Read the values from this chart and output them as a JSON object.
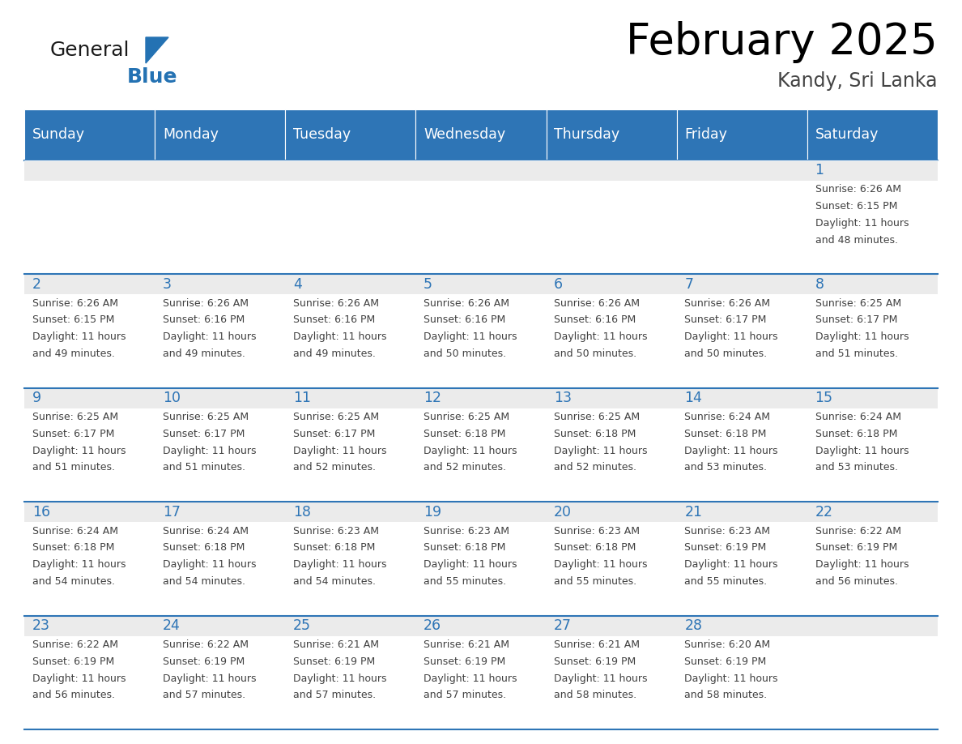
{
  "title": "February 2025",
  "subtitle": "Kandy, Sri Lanka",
  "days_of_week": [
    "Sunday",
    "Monday",
    "Tuesday",
    "Wednesday",
    "Thursday",
    "Friday",
    "Saturday"
  ],
  "header_bg_color": "#2E75B6",
  "header_text_color": "#FFFFFF",
  "cell_bg_white": "#FFFFFF",
  "cell_bg_gray": "#EBEBEB",
  "border_color": "#2E75B6",
  "day_number_color": "#2E75B6",
  "text_color": "#404040",
  "logo_general_color": "#1A1A1A",
  "logo_blue_color": "#2472B3",
  "weeks": [
    [
      {
        "day": null,
        "sunrise": null,
        "sunset": null,
        "daylight": null
      },
      {
        "day": null,
        "sunrise": null,
        "sunset": null,
        "daylight": null
      },
      {
        "day": null,
        "sunrise": null,
        "sunset": null,
        "daylight": null
      },
      {
        "day": null,
        "sunrise": null,
        "sunset": null,
        "daylight": null
      },
      {
        "day": null,
        "sunrise": null,
        "sunset": null,
        "daylight": null
      },
      {
        "day": null,
        "sunrise": null,
        "sunset": null,
        "daylight": null
      },
      {
        "day": 1,
        "sunrise": "6:26 AM",
        "sunset": "6:15 PM",
        "daylight": "11 hours and 48 minutes."
      }
    ],
    [
      {
        "day": 2,
        "sunrise": "6:26 AM",
        "sunset": "6:15 PM",
        "daylight": "11 hours and 49 minutes."
      },
      {
        "day": 3,
        "sunrise": "6:26 AM",
        "sunset": "6:16 PM",
        "daylight": "11 hours and 49 minutes."
      },
      {
        "day": 4,
        "sunrise": "6:26 AM",
        "sunset": "6:16 PM",
        "daylight": "11 hours and 49 minutes."
      },
      {
        "day": 5,
        "sunrise": "6:26 AM",
        "sunset": "6:16 PM",
        "daylight": "11 hours and 50 minutes."
      },
      {
        "day": 6,
        "sunrise": "6:26 AM",
        "sunset": "6:16 PM",
        "daylight": "11 hours and 50 minutes."
      },
      {
        "day": 7,
        "sunrise": "6:26 AM",
        "sunset": "6:17 PM",
        "daylight": "11 hours and 50 minutes."
      },
      {
        "day": 8,
        "sunrise": "6:25 AM",
        "sunset": "6:17 PM",
        "daylight": "11 hours and 51 minutes."
      }
    ],
    [
      {
        "day": 9,
        "sunrise": "6:25 AM",
        "sunset": "6:17 PM",
        "daylight": "11 hours and 51 minutes."
      },
      {
        "day": 10,
        "sunrise": "6:25 AM",
        "sunset": "6:17 PM",
        "daylight": "11 hours and 51 minutes."
      },
      {
        "day": 11,
        "sunrise": "6:25 AM",
        "sunset": "6:17 PM",
        "daylight": "11 hours and 52 minutes."
      },
      {
        "day": 12,
        "sunrise": "6:25 AM",
        "sunset": "6:18 PM",
        "daylight": "11 hours and 52 minutes."
      },
      {
        "day": 13,
        "sunrise": "6:25 AM",
        "sunset": "6:18 PM",
        "daylight": "11 hours and 52 minutes."
      },
      {
        "day": 14,
        "sunrise": "6:24 AM",
        "sunset": "6:18 PM",
        "daylight": "11 hours and 53 minutes."
      },
      {
        "day": 15,
        "sunrise": "6:24 AM",
        "sunset": "6:18 PM",
        "daylight": "11 hours and 53 minutes."
      }
    ],
    [
      {
        "day": 16,
        "sunrise": "6:24 AM",
        "sunset": "6:18 PM",
        "daylight": "11 hours and 54 minutes."
      },
      {
        "day": 17,
        "sunrise": "6:24 AM",
        "sunset": "6:18 PM",
        "daylight": "11 hours and 54 minutes."
      },
      {
        "day": 18,
        "sunrise": "6:23 AM",
        "sunset": "6:18 PM",
        "daylight": "11 hours and 54 minutes."
      },
      {
        "day": 19,
        "sunrise": "6:23 AM",
        "sunset": "6:18 PM",
        "daylight": "11 hours and 55 minutes."
      },
      {
        "day": 20,
        "sunrise": "6:23 AM",
        "sunset": "6:18 PM",
        "daylight": "11 hours and 55 minutes."
      },
      {
        "day": 21,
        "sunrise": "6:23 AM",
        "sunset": "6:19 PM",
        "daylight": "11 hours and 55 minutes."
      },
      {
        "day": 22,
        "sunrise": "6:22 AM",
        "sunset": "6:19 PM",
        "daylight": "11 hours and 56 minutes."
      }
    ],
    [
      {
        "day": 23,
        "sunrise": "6:22 AM",
        "sunset": "6:19 PM",
        "daylight": "11 hours and 56 minutes."
      },
      {
        "day": 24,
        "sunrise": "6:22 AM",
        "sunset": "6:19 PM",
        "daylight": "11 hours and 57 minutes."
      },
      {
        "day": 25,
        "sunrise": "6:21 AM",
        "sunset": "6:19 PM",
        "daylight": "11 hours and 57 minutes."
      },
      {
        "day": 26,
        "sunrise": "6:21 AM",
        "sunset": "6:19 PM",
        "daylight": "11 hours and 57 minutes."
      },
      {
        "day": 27,
        "sunrise": "6:21 AM",
        "sunset": "6:19 PM",
        "daylight": "11 hours and 58 minutes."
      },
      {
        "day": 28,
        "sunrise": "6:20 AM",
        "sunset": "6:19 PM",
        "daylight": "11 hours and 58 minutes."
      },
      {
        "day": null,
        "sunrise": null,
        "sunset": null,
        "daylight": null
      }
    ]
  ]
}
